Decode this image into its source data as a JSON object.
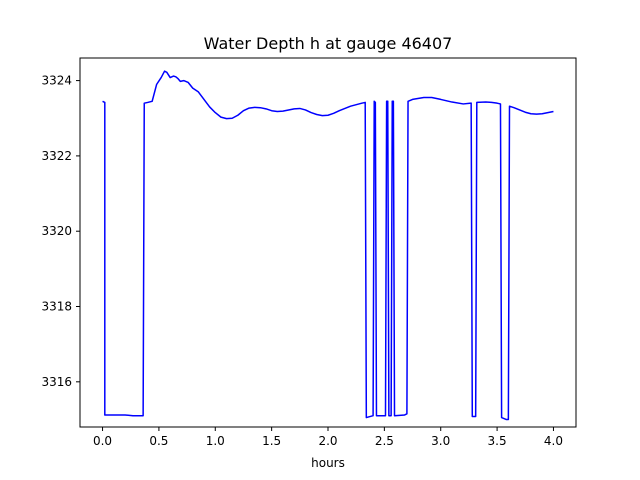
{
  "chart_data": {
    "type": "line",
    "title": "Water Depth h at gauge 46407",
    "xlabel": "hours",
    "ylabel": "",
    "xlim": [
      -0.2,
      4.2
    ],
    "ylim": [
      3314.8,
      3324.6
    ],
    "xticks": [
      0.0,
      0.5,
      1.0,
      1.5,
      2.0,
      2.5,
      3.0,
      3.5,
      4.0
    ],
    "xtick_labels": [
      "0.0",
      "0.5",
      "1.0",
      "1.5",
      "2.0",
      "2.5",
      "3.0",
      "3.5",
      "4.0"
    ],
    "yticks": [
      3316,
      3318,
      3320,
      3322,
      3324
    ],
    "ytick_labels": [
      "3316",
      "3318",
      "3320",
      "3322",
      "3324"
    ],
    "grid": false,
    "series": [
      {
        "color": "#0000ff",
        "points": [
          [
            0.0,
            3323.45
          ],
          [
            0.02,
            3323.42
          ],
          [
            0.02,
            3315.12
          ],
          [
            0.1,
            3315.12
          ],
          [
            0.2,
            3315.12
          ],
          [
            0.27,
            3315.1
          ],
          [
            0.36,
            3315.1
          ],
          [
            0.37,
            3323.4
          ],
          [
            0.4,
            3323.42
          ],
          [
            0.44,
            3323.45
          ],
          [
            0.48,
            3323.9
          ],
          [
            0.52,
            3324.08
          ],
          [
            0.55,
            3324.25
          ],
          [
            0.57,
            3324.22
          ],
          [
            0.6,
            3324.08
          ],
          [
            0.63,
            3324.12
          ],
          [
            0.65,
            3324.1
          ],
          [
            0.67,
            3324.05
          ],
          [
            0.69,
            3323.98
          ],
          [
            0.72,
            3324.0
          ],
          [
            0.76,
            3323.95
          ],
          [
            0.8,
            3323.8
          ],
          [
            0.85,
            3323.7
          ],
          [
            0.9,
            3323.5
          ],
          [
            0.95,
            3323.3
          ],
          [
            1.0,
            3323.15
          ],
          [
            1.05,
            3323.03
          ],
          [
            1.1,
            3322.99
          ],
          [
            1.15,
            3323.0
          ],
          [
            1.2,
            3323.08
          ],
          [
            1.25,
            3323.2
          ],
          [
            1.3,
            3323.27
          ],
          [
            1.35,
            3323.29
          ],
          [
            1.4,
            3323.28
          ],
          [
            1.45,
            3323.25
          ],
          [
            1.5,
            3323.2
          ],
          [
            1.55,
            3323.18
          ],
          [
            1.6,
            3323.19
          ],
          [
            1.65,
            3323.22
          ],
          [
            1.7,
            3323.25
          ],
          [
            1.75,
            3323.26
          ],
          [
            1.8,
            3323.22
          ],
          [
            1.85,
            3323.15
          ],
          [
            1.9,
            3323.1
          ],
          [
            1.95,
            3323.07
          ],
          [
            2.0,
            3323.08
          ],
          [
            2.05,
            3323.13
          ],
          [
            2.1,
            3323.2
          ],
          [
            2.2,
            3323.32
          ],
          [
            2.3,
            3323.4
          ],
          [
            2.33,
            3323.42
          ],
          [
            2.34,
            3315.05
          ],
          [
            2.4,
            3315.1
          ],
          [
            2.41,
            3323.45
          ],
          [
            2.42,
            3323.42
          ],
          [
            2.43,
            3315.1
          ],
          [
            2.51,
            3315.1
          ],
          [
            2.52,
            3323.45
          ],
          [
            2.53,
            3323.45
          ],
          [
            2.54,
            3315.1
          ],
          [
            2.56,
            3315.1
          ],
          [
            2.57,
            3323.45
          ],
          [
            2.58,
            3323.45
          ],
          [
            2.59,
            3315.1
          ],
          [
            2.68,
            3315.12
          ],
          [
            2.7,
            3315.15
          ],
          [
            2.71,
            3323.45
          ],
          [
            2.75,
            3323.5
          ],
          [
            2.85,
            3323.55
          ],
          [
            2.92,
            3323.55
          ],
          [
            3.0,
            3323.5
          ],
          [
            3.1,
            3323.43
          ],
          [
            3.2,
            3323.38
          ],
          [
            3.27,
            3323.4
          ],
          [
            3.28,
            3315.08
          ],
          [
            3.31,
            3315.08
          ],
          [
            3.32,
            3323.42
          ],
          [
            3.4,
            3323.43
          ],
          [
            3.45,
            3323.42
          ],
          [
            3.5,
            3323.4
          ],
          [
            3.53,
            3323.38
          ],
          [
            3.54,
            3315.05
          ],
          [
            3.58,
            3315.0
          ],
          [
            3.6,
            3315.0
          ],
          [
            3.61,
            3323.32
          ],
          [
            3.65,
            3323.28
          ],
          [
            3.7,
            3323.22
          ],
          [
            3.75,
            3323.16
          ],
          [
            3.8,
            3323.12
          ],
          [
            3.85,
            3323.11
          ],
          [
            3.9,
            3323.12
          ],
          [
            3.95,
            3323.15
          ],
          [
            4.0,
            3323.18
          ]
        ]
      }
    ]
  }
}
